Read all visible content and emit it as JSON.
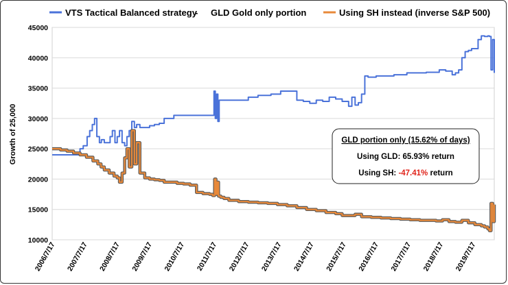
{
  "chart_data": {
    "type": "line",
    "title": "",
    "xlabel": "",
    "ylabel": "Growth of 25,000",
    "ylim": [
      10000,
      45000
    ],
    "yticks": [
      10000,
      15000,
      20000,
      25000,
      30000,
      35000,
      40000,
      45000
    ],
    "x_tick_labels": [
      "2006/7/17",
      "2007/7/17",
      "2008/7/17",
      "2009/7/17",
      "2010/7/17",
      "2011/7/17",
      "2012/7/17",
      "2013/7/17",
      "2014/7/17",
      "2015/7/17",
      "2016/7/17",
      "2017/7/17",
      "2018/7/17",
      "2019/7/17"
    ],
    "xlim": [
      "2006/7/17",
      "2020/3/15"
    ],
    "grid": "horizontal",
    "legend_position": "top",
    "legend": {
      "entry1": "VTS Tactical Balanced strategy",
      "separator": "-",
      "entry1_suffix": "GLD Gold only portion",
      "entry2": "Using SH instead  (inverse S&P 500)"
    },
    "annotation": {
      "title": "GLD portion only   (15.62% of days)",
      "line1_prefix": "Using GLD:  ",
      "line1_value": "65.93%",
      "line1_suffix": " return",
      "line2_prefix": "Using SH:  ",
      "line2_value": "-47.41%",
      "line2_suffix": " return"
    },
    "series": [
      {
        "name": "VTS Tactical Balanced strategy - GLD Gold only portion",
        "color": "#4a72d9",
        "x": [
          2006.54,
          2007.1,
          2007.4,
          2007.5,
          2007.62,
          2007.7,
          2007.78,
          2007.85,
          2007.92,
          2008.0,
          2008.06,
          2008.15,
          2008.25,
          2008.33,
          2008.4,
          2008.48,
          2008.55,
          2008.62,
          2008.7,
          2008.78,
          2008.85,
          2008.92,
          2009.0,
          2009.08,
          2009.15,
          2009.25,
          2009.4,
          2009.55,
          2009.7,
          2009.85,
          2010.0,
          2010.1,
          2010.3,
          2010.5,
          2010.7,
          2010.9,
          2011.1,
          2011.3,
          2011.4,
          2011.48,
          2011.54,
          2011.58,
          2011.62,
          2011.66,
          2011.7,
          2011.75,
          2011.8,
          2012.0,
          2012.3,
          2012.6,
          2012.9,
          2013.1,
          2013.3,
          2013.6,
          2013.9,
          2014.1,
          2014.3,
          2014.5,
          2014.7,
          2014.9,
          2015.1,
          2015.3,
          2015.5,
          2015.7,
          2015.8,
          2015.9,
          2016.0,
          2016.1,
          2016.2,
          2016.3,
          2016.4,
          2016.55,
          2016.7,
          2016.9,
          2017.1,
          2017.3,
          2017.5,
          2017.7,
          2017.9,
          2018.1,
          2018.3,
          2018.5,
          2018.7,
          2018.9,
          2019.0,
          2019.1,
          2019.2,
          2019.3,
          2019.4,
          2019.5,
          2019.6,
          2019.7,
          2019.8,
          2019.9,
          2020.0,
          2020.05,
          2020.1,
          2020.15,
          2020.2
        ],
        "y": [
          24000,
          24000,
          25000,
          25500,
          27000,
          28000,
          29000,
          30000,
          27000,
          26000,
          26500,
          26000,
          26000,
          27000,
          28000,
          26000,
          27000,
          28000,
          26000,
          25500,
          27000,
          28000,
          29500,
          28500,
          29000,
          28500,
          28500,
          28800,
          29000,
          29200,
          30000,
          30000,
          30500,
          30500,
          30500,
          30500,
          30500,
          30500,
          30500,
          30500,
          34500,
          30000,
          34000,
          29500,
          33000,
          33000,
          33000,
          33000,
          33000,
          33500,
          33800,
          33800,
          34000,
          34500,
          34500,
          33000,
          32800,
          32500,
          33000,
          32800,
          33500,
          33200,
          32800,
          32000,
          33500,
          32200,
          32600,
          34000,
          37000,
          36800,
          36800,
          37000,
          37000,
          37000,
          37200,
          37200,
          37500,
          37500,
          37500,
          37600,
          37600,
          38000,
          37800,
          37200,
          37500,
          38000,
          40000,
          41000,
          41200,
          41500,
          41500,
          43000,
          43600,
          43500,
          43600,
          43500,
          38000,
          43000,
          37500
        ]
      },
      {
        "name": "Using SH instead  (inverse S&P 500)",
        "color": "#e8893a",
        "x": [
          2006.54,
          2006.8,
          2007.0,
          2007.2,
          2007.4,
          2007.6,
          2007.8,
          2007.95,
          2008.05,
          2008.15,
          2008.3,
          2008.45,
          2008.55,
          2008.62,
          2008.7,
          2008.78,
          2008.85,
          2008.92,
          2009.0,
          2009.08,
          2009.15,
          2009.25,
          2009.4,
          2009.55,
          2009.7,
          2009.85,
          2010.0,
          2010.2,
          2010.4,
          2010.6,
          2010.8,
          2011.0,
          2011.2,
          2011.4,
          2011.5,
          2011.56,
          2011.6,
          2011.64,
          2011.68,
          2011.75,
          2011.85,
          2012.0,
          2012.3,
          2012.6,
          2012.9,
          2013.2,
          2013.5,
          2013.8,
          2014.1,
          2014.4,
          2014.7,
          2015.0,
          2015.3,
          2015.5,
          2015.7,
          2015.9,
          2016.1,
          2016.4,
          2016.7,
          2017.0,
          2017.3,
          2017.6,
          2017.9,
          2018.2,
          2018.4,
          2018.6,
          2018.8,
          2019.0,
          2019.2,
          2019.4,
          2019.6,
          2019.8,
          2019.9,
          2020.0,
          2020.05,
          2020.1,
          2020.15,
          2020.2
        ],
        "y": [
          25000,
          24800,
          24600,
          24300,
          24000,
          23600,
          23000,
          22500,
          22000,
          21500,
          21000,
          20500,
          20200,
          19500,
          21000,
          23500,
          25000,
          22000,
          28000,
          22500,
          26000,
          21000,
          20200,
          20000,
          19900,
          19800,
          19500,
          19500,
          19300,
          19200,
          19000,
          17800,
          17600,
          17500,
          17300,
          20000,
          17500,
          19500,
          17200,
          17000,
          16800,
          16500,
          16300,
          16200,
          16100,
          16000,
          15800,
          15600,
          15300,
          15000,
          14800,
          14500,
          14300,
          14000,
          14000,
          14200,
          13800,
          13700,
          13600,
          13500,
          13400,
          13300,
          13200,
          13200,
          13100,
          13300,
          13000,
          12900,
          13200,
          12800,
          12500,
          12300,
          12100,
          11800,
          11500,
          16000,
          13000,
          15800
        ]
      }
    ]
  }
}
